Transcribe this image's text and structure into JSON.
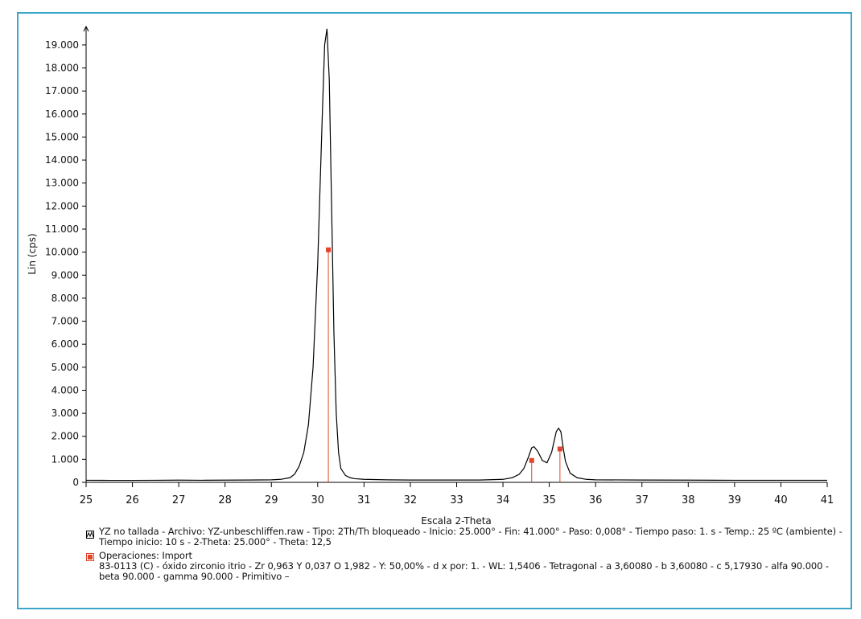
{
  "chart_data": {
    "type": "line",
    "ylabel": "Lin (cps)",
    "xlabel": "Escala 2-Theta",
    "xlim": [
      25,
      41
    ],
    "xticks": [
      25,
      26,
      27,
      28,
      29,
      30,
      31,
      32,
      33,
      34,
      35,
      36,
      37,
      38,
      39,
      40,
      41
    ],
    "ylim": [
      0,
      19800
    ],
    "yticks": [
      0,
      {
        "value": 1000,
        "label": "1.000"
      },
      {
        "value": 2000,
        "label": "2.000"
      },
      {
        "value": 3000,
        "label": "3.000"
      },
      {
        "value": 4000,
        "label": "4.000"
      },
      {
        "value": 5000,
        "label": "5.000"
      },
      {
        "value": 6000,
        "label": "6.000"
      },
      {
        "value": 7000,
        "label": "7.000"
      },
      {
        "value": 8000,
        "label": "8.000"
      },
      {
        "value": 9000,
        "label": "9.000"
      },
      {
        "value": 10000,
        "label": "10.000"
      },
      {
        "value": 11000,
        "label": "11.000"
      },
      {
        "value": 12000,
        "label": "12.000"
      },
      {
        "value": 13000,
        "label": "13.000"
      },
      {
        "value": 14000,
        "label": "14.000"
      },
      {
        "value": 15000,
        "label": "15.000"
      },
      {
        "value": 16000,
        "label": "16.000"
      },
      {
        "value": 17000,
        "label": "17.000"
      },
      {
        "value": 18000,
        "label": "18.000"
      },
      {
        "value": 19000,
        "label": "19.000"
      }
    ],
    "series": [
      {
        "name": "YZ no tallada - Archivo: YZ-unbeschliffen.raw - Tipo: 2Th/Th bloqueado - Inicio: 25.000° - Fin: 41.000° - Paso: 0,008° - Tiempo paso: 1. s - Temp.: 25 ºC (ambiente) - Tiempo inicio: 10 s - 2-Theta: 25.000° - Theta: 12,5",
        "color": "#000000",
        "x": [
          25,
          25.5,
          26,
          26.5,
          27,
          27.5,
          28,
          28.5,
          29,
          29.2,
          29.4,
          29.5,
          29.6,
          29.7,
          29.8,
          29.9,
          30.0,
          30.1,
          30.15,
          30.2,
          30.25,
          30.3,
          30.35,
          30.4,
          30.45,
          30.5,
          30.6,
          30.7,
          30.8,
          31,
          31.5,
          32,
          32.5,
          33,
          33.5,
          34,
          34.2,
          34.35,
          34.45,
          34.55,
          34.62,
          34.67,
          34.75,
          34.85,
          34.95,
          35.05,
          35.15,
          35.2,
          35.25,
          35.3,
          35.35,
          35.45,
          35.6,
          35.8,
          36,
          37,
          38,
          39,
          40,
          41
        ],
        "values": [
          90,
          85,
          85,
          90,
          95,
          90,
          95,
          100,
          110,
          130,
          200,
          350,
          700,
          1300,
          2500,
          5000,
          9500,
          16000,
          19000,
          19700,
          17500,
          12000,
          6500,
          3000,
          1300,
          600,
          300,
          200,
          160,
          130,
          110,
          100,
          100,
          100,
          100,
          130,
          200,
          350,
          600,
          1100,
          1500,
          1550,
          1350,
          950,
          850,
          1300,
          2200,
          2350,
          2200,
          1500,
          900,
          400,
          200,
          130,
          110,
          100,
          95,
          90,
          90,
          90
        ]
      },
      {
        "name": "Operaciones: Import",
        "label": "83-0113 (C) - óxido zirconio itrio - Zr 0,963 Y 0,037 O 1,982 - Y: 50,00% - d x por: 1. - WL: 1,5406 - Tetragonal - a 3,60080 - b 3,60080 - c 5,17930 - alfa 90.000 - beta 90.000 - gamma 90.000 - Primitivo –",
        "color": "#e0442a",
        "x": [
          30.23,
          34.62,
          35.23
        ],
        "values": [
          10100,
          950,
          1450
        ]
      }
    ]
  }
}
